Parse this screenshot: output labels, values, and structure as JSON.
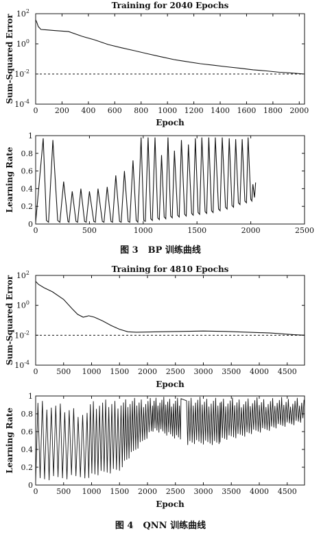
{
  "chart_data": [
    {
      "id": "bp-error",
      "type": "line",
      "title": "Training for 2040 Epochs",
      "xlabel": "Epoch",
      "ylabel": "Sum-Squared Error",
      "yscale": "log",
      "xlim": [
        0,
        2040
      ],
      "ylim": [
        0.0001,
        100
      ],
      "xticks": [
        0,
        200,
        400,
        600,
        800,
        1000,
        1200,
        1400,
        1600,
        1800,
        2000
      ],
      "yticks": [
        {
          "value": 100,
          "label": "10",
          "exp": "2"
        },
        {
          "value": 1,
          "label": "10",
          "exp": "0"
        },
        {
          "value": 0.01,
          "label": "10",
          "exp": "-2"
        },
        {
          "value": 0.0001,
          "label": "10",
          "exp": "-4"
        }
      ],
      "goal": 0.01,
      "series": [
        {
          "x": [
            0,
            10,
            20,
            40,
            80,
            150,
            250,
            350,
            450,
            550,
            650,
            750,
            850,
            950,
            1050,
            1150,
            1250,
            1350,
            1450,
            1550,
            1650,
            1750,
            1850,
            1950,
            2040
          ],
          "y": [
            40,
            25,
            14,
            9,
            8.5,
            7.5,
            6.5,
            3.2,
            1.8,
            0.9,
            0.55,
            0.35,
            0.22,
            0.14,
            0.09,
            0.065,
            0.048,
            0.038,
            0.03,
            0.024,
            0.019,
            0.016,
            0.013,
            0.0115,
            0.01
          ]
        }
      ]
    },
    {
      "id": "bp-lr",
      "type": "line",
      "title": "",
      "xlabel": "",
      "ylabel": "Learning Rate",
      "xlim": [
        0,
        2500
      ],
      "ylim": [
        0,
        1
      ],
      "xticks": [
        0,
        500,
        1000,
        1500,
        2000,
        2500
      ],
      "yticks": [
        0,
        0.2,
        0.4,
        0.6,
        0.8,
        1
      ],
      "series": [
        {
          "x": [
            0,
            70,
            100,
            120,
            160,
            205,
            225,
            260,
            300,
            310,
            340,
            375,
            390,
            420,
            455,
            470,
            500,
            540,
            555,
            580,
            620,
            635,
            665,
            700,
            715,
            745,
            780,
            795,
            825,
            860,
            875,
            905,
            935,
            950,
            980,
            1005,
            1020,
            1045,
            1070,
            1085,
            1110,
            1135,
            1150,
            1170,
            1195,
            1210,
            1230,
            1255,
            1270,
            1290,
            1320,
            1335,
            1355,
            1385,
            1400,
            1420,
            1450,
            1465,
            1485,
            1510,
            1525,
            1545,
            1575,
            1590,
            1610,
            1635,
            1650,
            1670,
            1700,
            1715,
            1735,
            1765,
            1780,
            1800,
            1825,
            1840,
            1860,
            1885,
            1900,
            1920,
            1945,
            1960,
            1975,
            2000,
            2010,
            2020,
            2035,
            2045
          ],
          "y": [
            0.02,
            0.97,
            0.04,
            0.02,
            0.95,
            0.04,
            0.02,
            0.48,
            0.03,
            0.02,
            0.37,
            0.03,
            0.02,
            0.4,
            0.03,
            0.02,
            0.37,
            0.03,
            0.02,
            0.4,
            0.03,
            0.02,
            0.42,
            0.03,
            0.02,
            0.55,
            0.03,
            0.02,
            0.6,
            0.03,
            0.02,
            0.72,
            0.04,
            0.02,
            0.98,
            0.04,
            0.03,
            0.98,
            0.06,
            0.04,
            0.98,
            0.07,
            0.05,
            0.78,
            0.08,
            0.06,
            0.98,
            0.09,
            0.07,
            0.83,
            0.1,
            0.08,
            0.95,
            0.11,
            0.09,
            0.9,
            0.12,
            0.1,
            0.97,
            0.13,
            0.11,
            0.98,
            0.14,
            0.12,
            0.98,
            0.15,
            0.13,
            0.98,
            0.17,
            0.15,
            0.98,
            0.19,
            0.17,
            0.97,
            0.21,
            0.19,
            0.96,
            0.24,
            0.22,
            0.96,
            0.26,
            0.24,
            0.98,
            0.28,
            0.26,
            0.45,
            0.3,
            0.47
          ]
        }
      ]
    },
    {
      "id": "qnn-error",
      "type": "line",
      "title": "Training for 4810 Epochs",
      "xlabel": "Epoch",
      "ylabel": "Sum-Squared Error",
      "yscale": "log",
      "xlim": [
        0,
        4810
      ],
      "ylim": [
        0.0001,
        100
      ],
      "xticks": [
        0,
        500,
        1000,
        1500,
        2000,
        2500,
        3000,
        3500,
        4000,
        4500
      ],
      "yticks": [
        {
          "value": 100,
          "label": "10",
          "exp": "2"
        },
        {
          "value": 1,
          "label": "10",
          "exp": "0"
        },
        {
          "value": 0.01,
          "label": "10",
          "exp": "-2"
        },
        {
          "value": 0.0001,
          "label": "10",
          "exp": "-4"
        }
      ],
      "goal": 0.01,
      "series": [
        {
          "x": [
            0,
            50,
            150,
            300,
            500,
            650,
            750,
            850,
            950,
            1050,
            1200,
            1350,
            1500,
            1650,
            1800,
            2200,
            2600,
            3000,
            3400,
            3800,
            4200,
            4600,
            4810
          ],
          "y": [
            40,
            25,
            15,
            8,
            2.5,
            0.6,
            0.25,
            0.16,
            0.2,
            0.16,
            0.09,
            0.045,
            0.025,
            0.017,
            0.016,
            0.017,
            0.018,
            0.019,
            0.018,
            0.016,
            0.014,
            0.011,
            0.01
          ]
        }
      ]
    },
    {
      "id": "qnn-lr",
      "type": "line",
      "title": "",
      "xlabel": "Epoch",
      "ylabel": "Learning Rate",
      "xlim": [
        0,
        4810
      ],
      "ylim": [
        0,
        1
      ],
      "xticks": [
        0,
        500,
        1000,
        1500,
        2000,
        2500,
        3000,
        3500,
        4000,
        4500
      ],
      "yticks": [
        0,
        0.2,
        0.4,
        0.6,
        0.8,
        1
      ],
      "bands": [
        {
          "x": [
            0,
            950
          ],
          "period": 80,
          "lo": [
            0.03,
            0.08
          ],
          "hi": [
            0.97,
            0.85
          ]
        },
        {
          "x": [
            950,
            1550
          ],
          "period": 55,
          "lo": [
            0.08,
            0.15
          ],
          "hi": [
            0.95,
            0.97
          ]
        },
        {
          "x": [
            1550,
            2100
          ],
          "period": 40,
          "lo": [
            0.2,
            0.6
          ],
          "hi": [
            0.97,
            0.99
          ]
        },
        {
          "x": [
            2100,
            2600
          ],
          "period": 35,
          "lo": [
            0.6,
            0.5
          ],
          "hi": [
            0.99,
            0.99
          ]
        },
        {
          "x": [
            2600,
            2720
          ],
          "period": 200,
          "lo": [
            0.97,
            0.97
          ],
          "hi": [
            0.99,
            0.99
          ]
        },
        {
          "x": [
            2720,
            3300
          ],
          "period": 40,
          "lo": [
            0.45,
            0.45
          ],
          "hi": [
            0.99,
            0.99
          ]
        },
        {
          "x": [
            3300,
            4810
          ],
          "period": 40,
          "lo": [
            0.48,
            0.7
          ],
          "hi": [
            0.98,
            0.99
          ]
        }
      ]
    }
  ],
  "captions": [
    {
      "fig": "图 3",
      "text": "BP 训练曲线"
    },
    {
      "fig": "图 4",
      "text": "QNN 训练曲线"
    }
  ]
}
